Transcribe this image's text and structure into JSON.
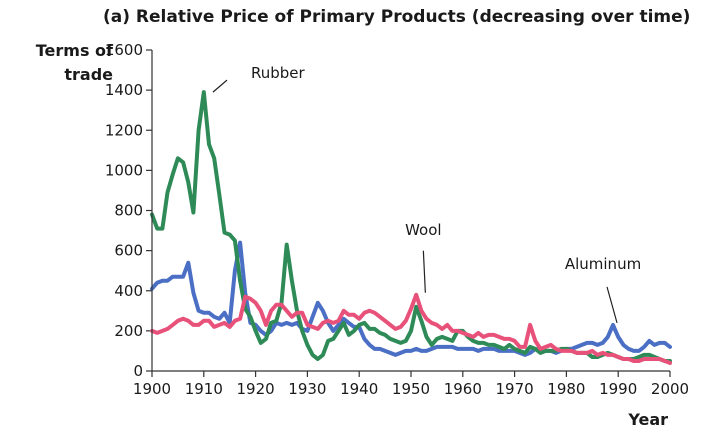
{
  "chart_data": {
    "type": "line",
    "title": "(a) Relative Price of Primary Products (decreasing over time)",
    "ylabel_lines": [
      "Terms of",
      "trade"
    ],
    "xlabel": "Year",
    "xlim": [
      1900,
      2000
    ],
    "ylim": [
      0,
      1600
    ],
    "x_ticks": [
      1900,
      1910,
      1920,
      1930,
      1940,
      1950,
      1960,
      1970,
      1980,
      1990,
      2000
    ],
    "y_ticks": [
      0,
      200,
      400,
      600,
      800,
      1000,
      1200,
      1400,
      1600
    ],
    "grid": false,
    "series": [
      {
        "name": "Aluminum",
        "color": "#4a6fc4",
        "points": [
          [
            1900,
            410
          ],
          [
            1901,
            440
          ],
          [
            1902,
            450
          ],
          [
            1903,
            450
          ],
          [
            1904,
            470
          ],
          [
            1905,
            470
          ],
          [
            1906,
            470
          ],
          [
            1907,
            540
          ],
          [
            1908,
            390
          ],
          [
            1909,
            300
          ],
          [
            1910,
            290
          ],
          [
            1911,
            290
          ],
          [
            1912,
            270
          ],
          [
            1913,
            260
          ],
          [
            1914,
            290
          ],
          [
            1915,
            240
          ],
          [
            1916,
            500
          ],
          [
            1917,
            640
          ],
          [
            1918,
            390
          ],
          [
            1919,
            240
          ],
          [
            1920,
            230
          ],
          [
            1921,
            200
          ],
          [
            1922,
            180
          ],
          [
            1923,
            200
          ],
          [
            1924,
            240
          ],
          [
            1925,
            230
          ],
          [
            1926,
            240
          ],
          [
            1927,
            230
          ],
          [
            1928,
            240
          ],
          [
            1929,
            210
          ],
          [
            1930,
            200
          ],
          [
            1931,
            270
          ],
          [
            1932,
            340
          ],
          [
            1933,
            300
          ],
          [
            1934,
            240
          ],
          [
            1935,
            200
          ],
          [
            1936,
            230
          ],
          [
            1937,
            260
          ],
          [
            1938,
            240
          ],
          [
            1939,
            220
          ],
          [
            1940,
            220
          ],
          [
            1941,
            160
          ],
          [
            1942,
            130
          ],
          [
            1943,
            110
          ],
          [
            1944,
            110
          ],
          [
            1945,
            100
          ],
          [
            1946,
            90
          ],
          [
            1947,
            80
          ],
          [
            1948,
            90
          ],
          [
            1949,
            100
          ],
          [
            1950,
            100
          ],
          [
            1951,
            110
          ],
          [
            1952,
            100
          ],
          [
            1953,
            100
          ],
          [
            1954,
            110
          ],
          [
            1955,
            120
          ],
          [
            1956,
            120
          ],
          [
            1957,
            120
          ],
          [
            1958,
            120
          ],
          [
            1959,
            110
          ],
          [
            1960,
            110
          ],
          [
            1961,
            110
          ],
          [
            1962,
            110
          ],
          [
            1963,
            100
          ],
          [
            1964,
            110
          ],
          [
            1965,
            110
          ],
          [
            1966,
            110
          ],
          [
            1967,
            100
          ],
          [
            1968,
            100
          ],
          [
            1969,
            100
          ],
          [
            1970,
            100
          ],
          [
            1971,
            90
          ],
          [
            1972,
            80
          ],
          [
            1973,
            90
          ],
          [
            1974,
            110
          ],
          [
            1975,
            100
          ],
          [
            1976,
            100
          ],
          [
            1977,
            100
          ],
          [
            1978,
            90
          ],
          [
            1979,
            100
          ],
          [
            1980,
            110
          ],
          [
            1981,
            110
          ],
          [
            1982,
            120
          ],
          [
            1983,
            130
          ],
          [
            1984,
            140
          ],
          [
            1985,
            140
          ],
          [
            1986,
            130
          ],
          [
            1987,
            140
          ],
          [
            1988,
            170
          ],
          [
            1989,
            230
          ],
          [
            1990,
            170
          ],
          [
            1991,
            130
          ],
          [
            1992,
            110
          ],
          [
            1993,
            100
          ],
          [
            1994,
            100
          ],
          [
            1995,
            120
          ],
          [
            1996,
            150
          ],
          [
            1997,
            130
          ],
          [
            1998,
            140
          ],
          [
            1999,
            140
          ],
          [
            2000,
            120
          ]
        ]
      },
      {
        "name": "Rubber",
        "color": "#2e8b57",
        "points": [
          [
            1900,
            780
          ],
          [
            1901,
            710
          ],
          [
            1902,
            710
          ],
          [
            1903,
            890
          ],
          [
            1904,
            980
          ],
          [
            1905,
            1060
          ],
          [
            1906,
            1040
          ],
          [
            1907,
            940
          ],
          [
            1908,
            790
          ],
          [
            1909,
            1200
          ],
          [
            1910,
            1390
          ],
          [
            1911,
            1130
          ],
          [
            1912,
            1060
          ],
          [
            1913,
            880
          ],
          [
            1914,
            690
          ],
          [
            1915,
            680
          ],
          [
            1916,
            650
          ],
          [
            1917,
            450
          ],
          [
            1918,
            310
          ],
          [
            1919,
            270
          ],
          [
            1920,
            200
          ],
          [
            1921,
            140
          ],
          [
            1922,
            160
          ],
          [
            1923,
            240
          ],
          [
            1924,
            250
          ],
          [
            1925,
            340
          ],
          [
            1926,
            630
          ],
          [
            1927,
            450
          ],
          [
            1928,
            300
          ],
          [
            1929,
            200
          ],
          [
            1930,
            130
          ],
          [
            1931,
            80
          ],
          [
            1932,
            60
          ],
          [
            1933,
            80
          ],
          [
            1934,
            150
          ],
          [
            1935,
            160
          ],
          [
            1936,
            200
          ],
          [
            1937,
            240
          ],
          [
            1938,
            180
          ],
          [
            1939,
            200
          ],
          [
            1940,
            230
          ],
          [
            1941,
            240
          ],
          [
            1942,
            210
          ],
          [
            1943,
            210
          ],
          [
            1944,
            190
          ],
          [
            1945,
            180
          ],
          [
            1946,
            160
          ],
          [
            1947,
            150
          ],
          [
            1948,
            140
          ],
          [
            1949,
            150
          ],
          [
            1950,
            200
          ],
          [
            1951,
            320
          ],
          [
            1952,
            250
          ],
          [
            1953,
            170
          ],
          [
            1954,
            130
          ],
          [
            1955,
            160
          ],
          [
            1956,
            170
          ],
          [
            1957,
            160
          ],
          [
            1958,
            150
          ],
          [
            1959,
            200
          ],
          [
            1960,
            200
          ],
          [
            1961,
            170
          ],
          [
            1962,
            150
          ],
          [
            1963,
            140
          ],
          [
            1964,
            140
          ],
          [
            1965,
            130
          ],
          [
            1966,
            130
          ],
          [
            1967,
            120
          ],
          [
            1968,
            110
          ],
          [
            1969,
            130
          ],
          [
            1970,
            110
          ],
          [
            1971,
            100
          ],
          [
            1972,
            90
          ],
          [
            1973,
            120
          ],
          [
            1974,
            110
          ],
          [
            1975,
            90
          ],
          [
            1976,
            100
          ],
          [
            1977,
            100
          ],
          [
            1978,
            100
          ],
          [
            1979,
            110
          ],
          [
            1980,
            110
          ],
          [
            1981,
            100
          ],
          [
            1982,
            90
          ],
          [
            1983,
            90
          ],
          [
            1984,
            90
          ],
          [
            1985,
            70
          ],
          [
            1986,
            70
          ],
          [
            1987,
            80
          ],
          [
            1988,
            90
          ],
          [
            1989,
            80
          ],
          [
            1990,
            70
          ],
          [
            1991,
            60
          ],
          [
            1992,
            60
          ],
          [
            1993,
            60
          ],
          [
            1994,
            70
          ],
          [
            1995,
            80
          ],
          [
            1996,
            80
          ],
          [
            1997,
            70
          ],
          [
            1998,
            60
          ],
          [
            1999,
            50
          ],
          [
            2000,
            50
          ]
        ]
      },
      {
        "name": "Wool",
        "color": "#e8527a",
        "points": [
          [
            1900,
            200
          ],
          [
            1901,
            190
          ],
          [
            1902,
            200
          ],
          [
            1903,
            210
          ],
          [
            1904,
            230
          ],
          [
            1905,
            250
          ],
          [
            1906,
            260
          ],
          [
            1907,
            250
          ],
          [
            1908,
            230
          ],
          [
            1909,
            230
          ],
          [
            1910,
            250
          ],
          [
            1911,
            250
          ],
          [
            1912,
            220
          ],
          [
            1913,
            230
          ],
          [
            1914,
            240
          ],
          [
            1915,
            220
          ],
          [
            1916,
            250
          ],
          [
            1917,
            260
          ],
          [
            1918,
            370
          ],
          [
            1919,
            360
          ],
          [
            1920,
            340
          ],
          [
            1921,
            300
          ],
          [
            1922,
            230
          ],
          [
            1923,
            300
          ],
          [
            1924,
            330
          ],
          [
            1925,
            330
          ],
          [
            1926,
            300
          ],
          [
            1927,
            270
          ],
          [
            1928,
            290
          ],
          [
            1929,
            290
          ],
          [
            1930,
            230
          ],
          [
            1931,
            220
          ],
          [
            1932,
            210
          ],
          [
            1933,
            240
          ],
          [
            1934,
            250
          ],
          [
            1935,
            240
          ],
          [
            1936,
            250
          ],
          [
            1937,
            300
          ],
          [
            1938,
            280
          ],
          [
            1939,
            280
          ],
          [
            1940,
            260
          ],
          [
            1941,
            290
          ],
          [
            1942,
            300
          ],
          [
            1943,
            290
          ],
          [
            1944,
            270
          ],
          [
            1945,
            250
          ],
          [
            1946,
            230
          ],
          [
            1947,
            210
          ],
          [
            1948,
            220
          ],
          [
            1949,
            250
          ],
          [
            1950,
            310
          ],
          [
            1951,
            380
          ],
          [
            1952,
            300
          ],
          [
            1953,
            260
          ],
          [
            1954,
            240
          ],
          [
            1955,
            230
          ],
          [
            1956,
            210
          ],
          [
            1957,
            230
          ],
          [
            1958,
            200
          ],
          [
            1959,
            200
          ],
          [
            1960,
            190
          ],
          [
            1961,
            180
          ],
          [
            1962,
            170
          ],
          [
            1963,
            190
          ],
          [
            1964,
            170
          ],
          [
            1965,
            180
          ],
          [
            1966,
            180
          ],
          [
            1967,
            170
          ],
          [
            1968,
            160
          ],
          [
            1969,
            160
          ],
          [
            1970,
            150
          ],
          [
            1971,
            120
          ],
          [
            1972,
            120
          ],
          [
            1973,
            230
          ],
          [
            1974,
            150
          ],
          [
            1975,
            110
          ],
          [
            1976,
            120
          ],
          [
            1977,
            130
          ],
          [
            1978,
            110
          ],
          [
            1979,
            100
          ],
          [
            1980,
            100
          ],
          [
            1981,
            100
          ],
          [
            1982,
            90
          ],
          [
            1983,
            90
          ],
          [
            1984,
            90
          ],
          [
            1985,
            100
          ],
          [
            1986,
            80
          ],
          [
            1987,
            90
          ],
          [
            1988,
            80
          ],
          [
            1989,
            80
          ],
          [
            1990,
            70
          ],
          [
            1991,
            60
          ],
          [
            1992,
            60
          ],
          [
            1993,
            50
          ],
          [
            1994,
            50
          ],
          [
            1995,
            60
          ],
          [
            1996,
            60
          ],
          [
            1997,
            60
          ],
          [
            1998,
            60
          ],
          [
            1999,
            50
          ],
          [
            2000,
            40
          ]
        ]
      }
    ],
    "annotations": [
      {
        "text": "Rubber",
        "series": "Rubber",
        "at": [
          1911,
          1380
        ]
      },
      {
        "text": "Wool",
        "series": "Wool",
        "at": [
          1952,
          380
        ]
      },
      {
        "text": "Aluminum",
        "series": "Aluminum",
        "at": [
          1989,
          230
        ]
      }
    ]
  }
}
